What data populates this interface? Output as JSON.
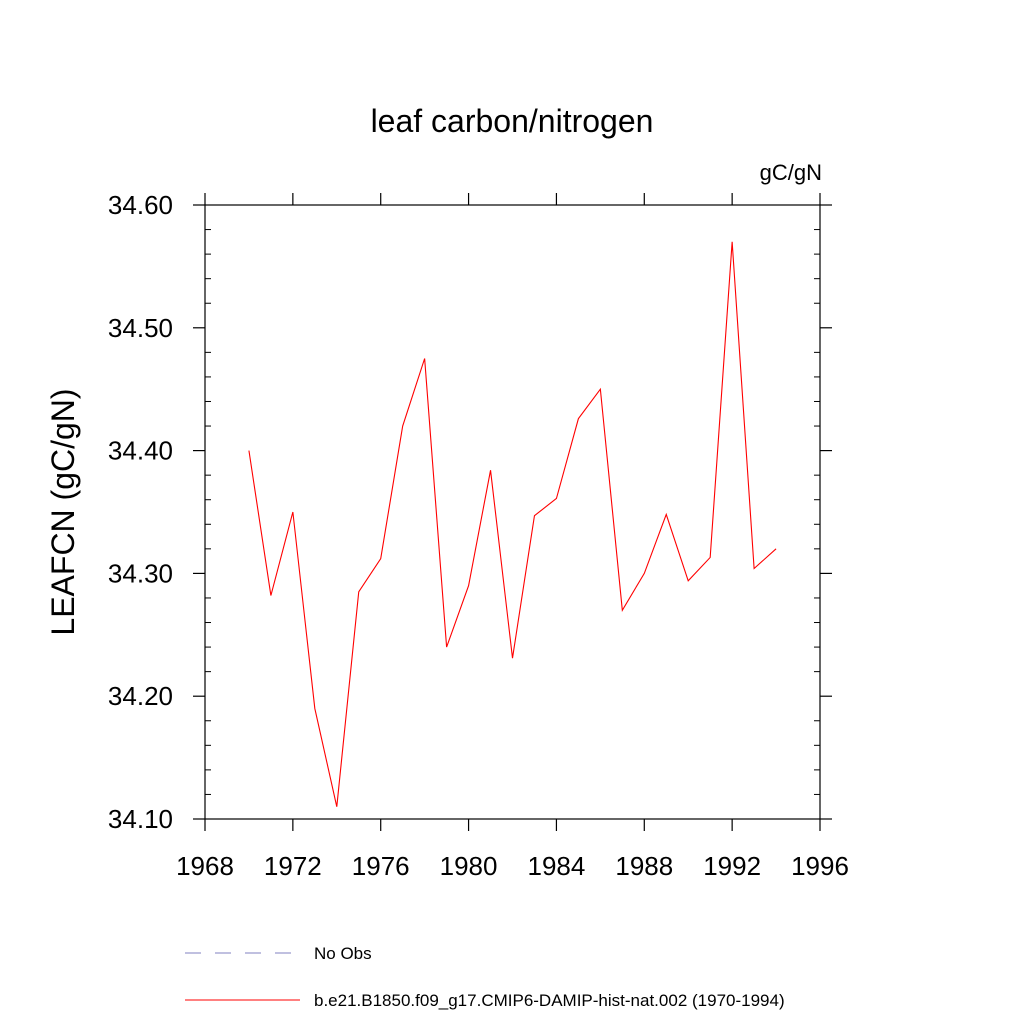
{
  "chart_data": {
    "type": "line",
    "title": "leaf carbon/nitrogen",
    "units_label": "gC/gN",
    "ylabel": "LEAFCN  (gC/gN)",
    "xlabel": "",
    "xlim": [
      1968,
      1996
    ],
    "ylim": [
      34.1,
      34.6
    ],
    "x_ticks": [
      1968,
      1972,
      1976,
      1980,
      1984,
      1988,
      1992,
      1996
    ],
    "x_tick_labels": [
      "1968",
      "1972",
      "1976",
      "1980",
      "1984",
      "1988",
      "1992",
      "1996"
    ],
    "y_ticks": [
      34.1,
      34.2,
      34.3,
      34.4,
      34.5,
      34.6
    ],
    "y_tick_labels": [
      "34.10",
      "34.20",
      "34.30",
      "34.40",
      "34.50",
      "34.60"
    ],
    "grid": false,
    "legend_position": "bottom",
    "series": [
      {
        "name": "b.e21.B1850.f09_g17.CMIP6-DAMIP-hist-nat.002 (1970-1994)",
        "color": "#ff0000",
        "dash": "solid",
        "x": [
          1970,
          1971,
          1972,
          1973,
          1974,
          1975,
          1976,
          1977,
          1978,
          1979,
          1980,
          1981,
          1982,
          1983,
          1984,
          1985,
          1986,
          1987,
          1988,
          1989,
          1990,
          1991,
          1992,
          1993,
          1994
        ],
        "y": [
          34.4,
          34.282,
          34.35,
          34.19,
          34.11,
          34.285,
          34.312,
          34.42,
          34.475,
          34.24,
          34.29,
          34.384,
          34.231,
          34.347,
          34.361,
          34.426,
          34.45,
          34.27,
          34.3,
          34.348,
          34.294,
          34.313,
          34.57,
          34.304,
          34.32
        ]
      }
    ],
    "legend": [
      {
        "label": "No Obs",
        "color": "#8080c0",
        "dash": "dashed"
      },
      {
        "label": "b.e21.B1850.f09_g17.CMIP6-DAMIP-hist-nat.002 (1970-1994)",
        "color": "#ff0000",
        "dash": "solid"
      }
    ]
  }
}
